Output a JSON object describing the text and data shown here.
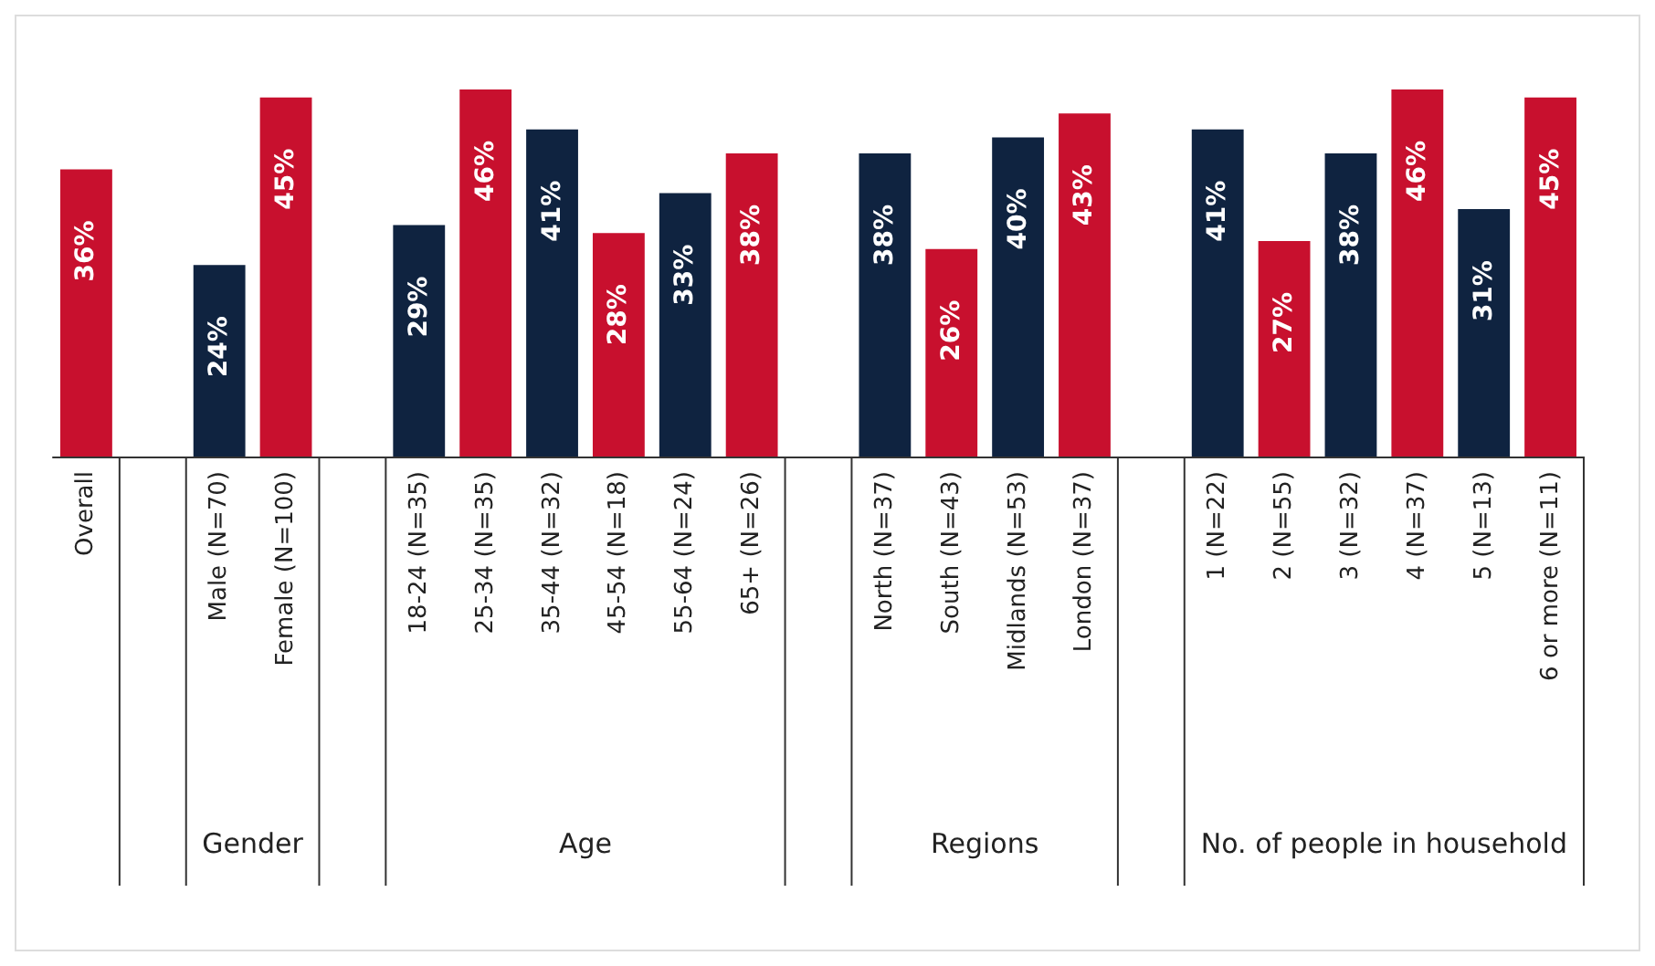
{
  "chart_data": {
    "type": "bar",
    "categories": [
      "Overall",
      null,
      "Male (N=70)",
      "Female (N=100)",
      null,
      "18-24 (N=35)",
      "25-34 (N=35)",
      "35-44 (N=32)",
      "45-54 (N=18)",
      "55-64 (N=24)",
      "65+ (N=26)",
      null,
      "North (N=37)",
      "South (N=43)",
      "Midlands (N=53)",
      "London (N=37)",
      null,
      "1 (N=22)",
      "2 (N=55)",
      "3 (N=32)",
      "4 (N=37)",
      "5 (N=13)",
      "6 or more (N=11)"
    ],
    "values": [
      36,
      null,
      24,
      45,
      null,
      29,
      46,
      41,
      28,
      33,
      38,
      null,
      38,
      26,
      40,
      43,
      null,
      41,
      27,
      38,
      46,
      31,
      45
    ],
    "value_labels": [
      "36%",
      null,
      "24%",
      "45%",
      null,
      "29%",
      "46%",
      "41%",
      "28%",
      "33%",
      "38%",
      null,
      "38%",
      "26%",
      "40%",
      "43%",
      null,
      "41%",
      "27%",
      "38%",
      "46%",
      "31%",
      "45%"
    ],
    "colors": [
      "#c8102e",
      null,
      "#0f2340",
      "#c8102e",
      null,
      "#0f2340",
      "#c8102e",
      "#0f2340",
      "#c8102e",
      "#0f2340",
      "#c8102e",
      null,
      "#0f2340",
      "#c8102e",
      "#0f2340",
      "#c8102e",
      null,
      "#0f2340",
      "#c8102e",
      "#0f2340",
      "#c8102e",
      "#0f2340",
      "#c8102e"
    ],
    "annotations": [
      "Gender",
      "Age",
      "Regions",
      "No. of people in household"
    ]
  }
}
